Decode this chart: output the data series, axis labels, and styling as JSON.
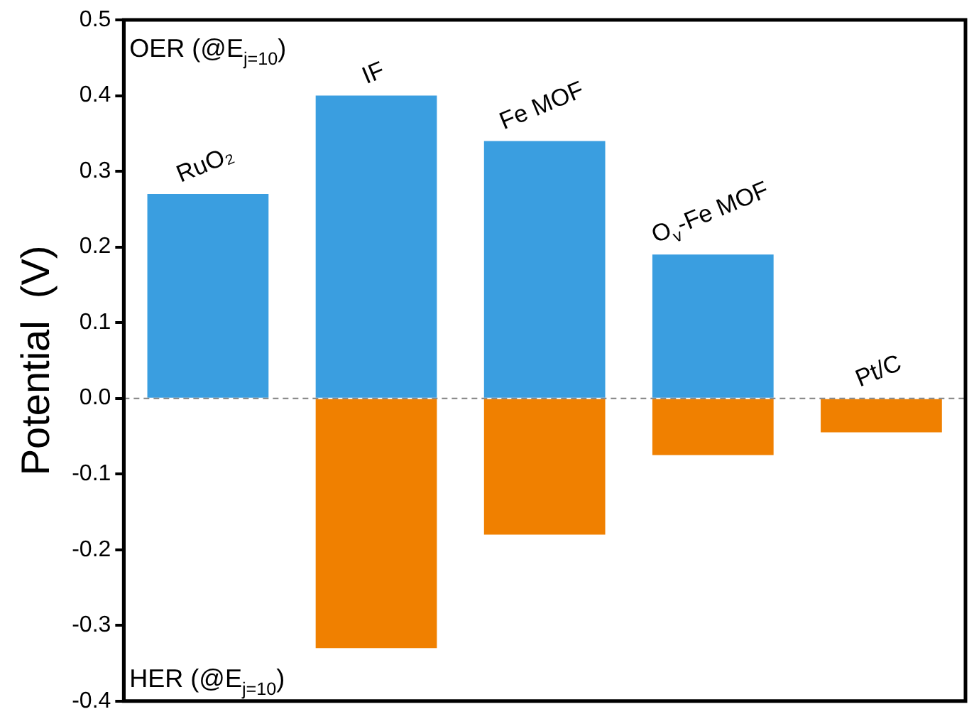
{
  "chart_data": {
    "type": "bar",
    "stacked": true,
    "ylabel": "Potential  (V)",
    "categories": [
      "RuO₂",
      "IF",
      "Fe MOF",
      "O$_{v}$-Fe MOF",
      "Pt/C"
    ],
    "series": [
      {
        "color": "#3a9ee0",
        "values": [
          0.27,
          0.4,
          0.34,
          0.19,
          null
        ]
      },
      {
        "color": "#f08000",
        "values": [
          null,
          -0.33,
          -0.18,
          -0.075,
          -0.045
        ]
      }
    ],
    "ylim": [
      -0.4,
      0.5
    ],
    "yticks": [
      -0.4,
      -0.3,
      -0.2,
      -0.1,
      {
        "value": 0,
        "label": "0.0"
      },
      0.1,
      0.2,
      0.3,
      0.4,
      0.5
    ],
    "tick_labels": "y",
    "grid": false,
    "legend": false,
    "ref_lines": [
      {
        "axis": "y",
        "value": 0,
        "color": "#808080",
        "line_style": "dashed"
      }
    ],
    "annotations": [
      "OER (@E$_{j=10}$)",
      "HER (@E$_{j=10}$)"
    ]
  }
}
